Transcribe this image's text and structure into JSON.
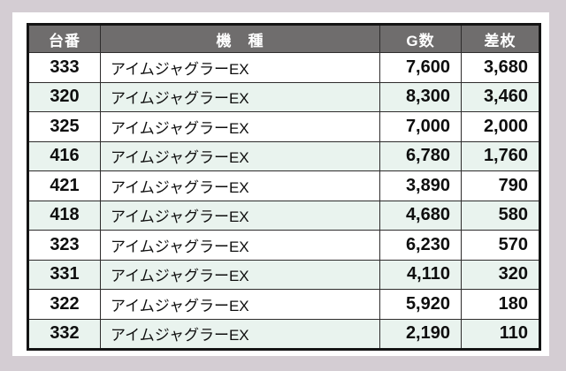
{
  "page": {
    "background_color": "#d4cdd3",
    "card_color": "#ffffff"
  },
  "chart_data": {
    "type": "table",
    "title": "",
    "header_bg": "#6f6d6d",
    "header_text_color": "#ffffff",
    "alt_row_bg": "#e9f3ee",
    "columns": [
      {
        "key": "dai",
        "label": "台番"
      },
      {
        "key": "kishu",
        "label": "機　種"
      },
      {
        "key": "g",
        "label": "G数"
      },
      {
        "key": "sa",
        "label": "差枚"
      }
    ],
    "rows": [
      {
        "dai": "333",
        "kishu": "アイムジャグラーEX",
        "g": "7,600",
        "sa": "3,680"
      },
      {
        "dai": "320",
        "kishu": "アイムジャグラーEX",
        "g": "8,300",
        "sa": "3,460"
      },
      {
        "dai": "325",
        "kishu": "アイムジャグラーEX",
        "g": "7,000",
        "sa": "2,000"
      },
      {
        "dai": "416",
        "kishu": "アイムジャグラーEX",
        "g": "6,780",
        "sa": "1,760"
      },
      {
        "dai": "421",
        "kishu": "アイムジャグラーEX",
        "g": "3,890",
        "sa": "790"
      },
      {
        "dai": "418",
        "kishu": "アイムジャグラーEX",
        "g": "4,680",
        "sa": "580"
      },
      {
        "dai": "323",
        "kishu": "アイムジャグラーEX",
        "g": "6,230",
        "sa": "570"
      },
      {
        "dai": "331",
        "kishu": "アイムジャグラーEX",
        "g": "4,110",
        "sa": "320"
      },
      {
        "dai": "322",
        "kishu": "アイムジャグラーEX",
        "g": "5,920",
        "sa": "180"
      },
      {
        "dai": "332",
        "kishu": "アイムジャグラーEX",
        "g": "2,190",
        "sa": "110"
      }
    ]
  }
}
